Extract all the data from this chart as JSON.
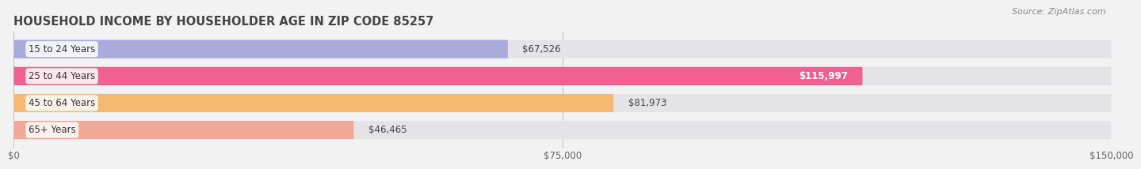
{
  "title": "HOUSEHOLD INCOME BY HOUSEHOLDER AGE IN ZIP CODE 85257",
  "source": "Source: ZipAtlas.com",
  "categories": [
    "15 to 24 Years",
    "25 to 44 Years",
    "45 to 64 Years",
    "65+ Years"
  ],
  "values": [
    67526,
    115997,
    81973,
    46465
  ],
  "bar_colors": [
    "#aaaadd",
    "#f06090",
    "#f5b870",
    "#f0a898"
  ],
  "bar_bg_color": "#e4e4e8",
  "text_colors": [
    "#444444",
    "#ffffff",
    "#444444",
    "#444444"
  ],
  "value_inside": [
    false,
    true,
    false,
    false
  ],
  "xlim": [
    0,
    150000
  ],
  "xticks": [
    0,
    75000,
    150000
  ],
  "xtick_labels": [
    "$0",
    "$75,000",
    "$150,000"
  ],
  "value_labels": [
    "$67,526",
    "$115,997",
    "$81,973",
    "$46,465"
  ],
  "title_fontsize": 10.5,
  "source_fontsize": 8,
  "label_fontsize": 8.5,
  "tick_fontsize": 8.5,
  "bar_height": 0.68,
  "background_color": "#f2f2f2"
}
